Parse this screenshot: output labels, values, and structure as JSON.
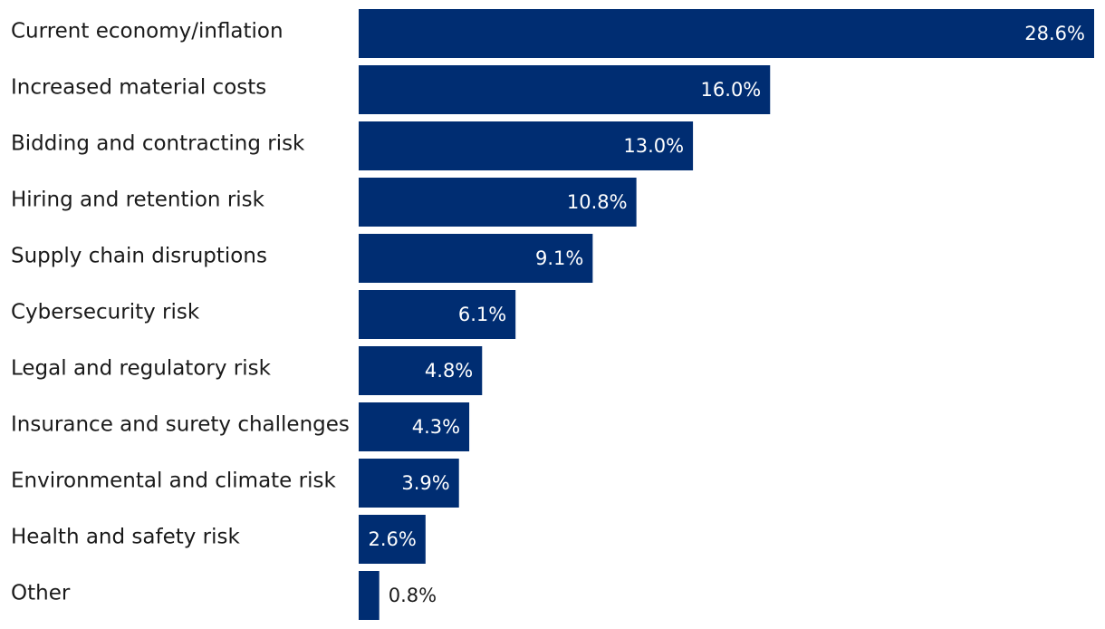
{
  "chart_data": {
    "type": "bar",
    "orientation": "horizontal",
    "categories": [
      "Current economy/inflation",
      "Increased material costs",
      "Bidding and contracting risk",
      "Hiring and retention risk",
      "Supply chain disruptions",
      "Cybersecurity risk",
      "Legal and regulatory risk",
      "Insurance and surety challenges",
      "Environmental and climate risk",
      "Health and safety risk",
      "Other"
    ],
    "values": [
      28.6,
      16.0,
      13.0,
      10.8,
      9.1,
      6.1,
      4.8,
      4.3,
      3.9,
      2.6,
      0.8
    ],
    "value_labels": [
      "28.6%",
      "16.0%",
      "13.0%",
      "10.8%",
      "9.1%",
      "6.1%",
      "4.8%",
      "4.3%",
      "3.9%",
      "2.6%",
      "0.8%"
    ],
    "unit": "%",
    "xlim": [
      0,
      28.6
    ],
    "grid": false,
    "legend": "none",
    "colors": {
      "bar": "#002d72",
      "label_inside": "#ffffff",
      "label_outside": "#1a1a1a",
      "category_text": "#1a1a1a"
    }
  }
}
